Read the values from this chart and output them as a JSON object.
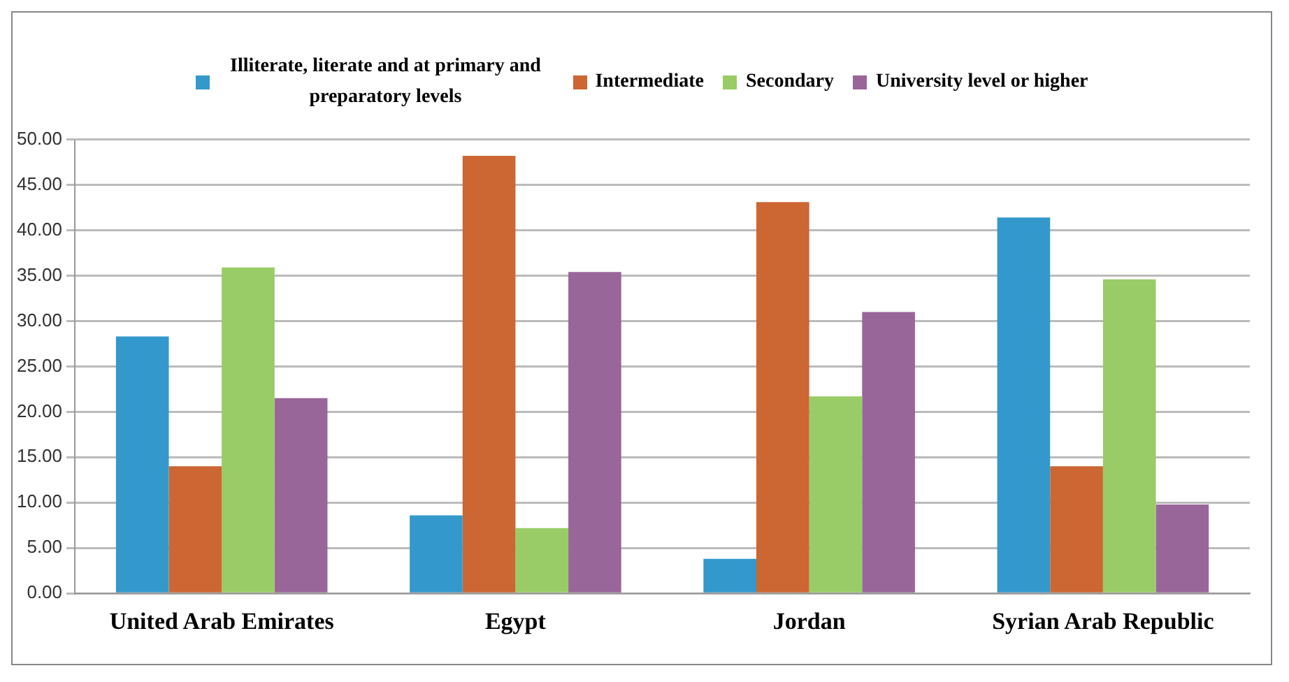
{
  "chart_data": {
    "type": "bar",
    "categories": [
      "United Arab Emirates",
      "Egypt",
      "Jordan",
      "Syrian Arab Republic"
    ],
    "series": [
      {
        "name": "Illiterate, literate and at primary and preparatory levels",
        "color": "#3399cc",
        "values": [
          28.3,
          8.6,
          3.8,
          41.4
        ]
      },
      {
        "name": "Intermediate",
        "color": "#cc6633",
        "values": [
          14.0,
          48.2,
          43.1,
          14.0
        ]
      },
      {
        "name": "Secondary",
        "color": "#99cc66",
        "values": [
          35.9,
          7.2,
          21.7,
          34.6
        ]
      },
      {
        "name": "University level or higher",
        "color": "#996699",
        "values": [
          21.5,
          35.4,
          31.0,
          9.8
        ]
      }
    ],
    "ylim": [
      0,
      50
    ],
    "yticks": [
      {
        "value": 0,
        "label": "0.00"
      },
      {
        "value": 5,
        "label": "5.00"
      },
      {
        "value": 10,
        "label": "10.00"
      },
      {
        "value": 15,
        "label": "15.00"
      },
      {
        "value": 20,
        "label": "20.00"
      },
      {
        "value": 25,
        "label": "25.00"
      },
      {
        "value": 30,
        "label": "30.00"
      },
      {
        "value": 35,
        "label": "35.00"
      },
      {
        "value": 40,
        "label": "40.00"
      },
      {
        "value": 45,
        "label": "45.00"
      },
      {
        "value": 50,
        "label": "50.00"
      }
    ],
    "grid": "y",
    "legend": "top"
  }
}
